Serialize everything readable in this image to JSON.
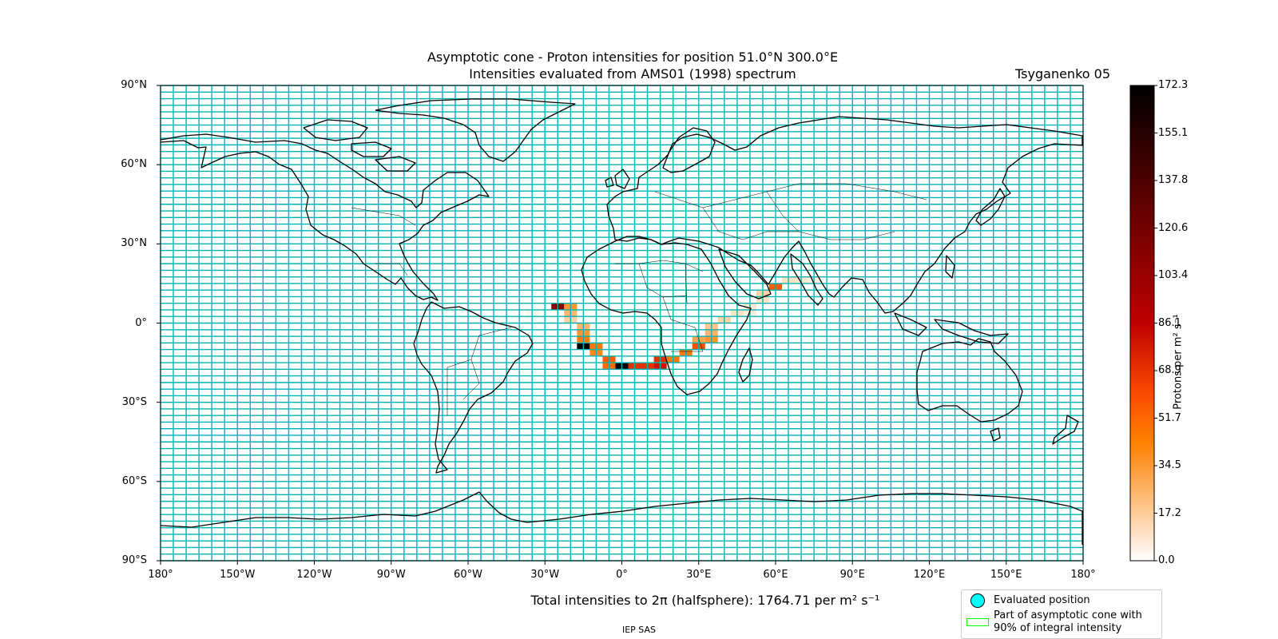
{
  "title": {
    "line1": "Asymptotic cone - Proton intensities for position 51.0°N 300.0°E",
    "line2": "Intensities evaluated from AMS01 (1998) spectrum",
    "model": "Tsyganenko 05"
  },
  "map": {
    "x_ticks": [
      {
        "lon": -180,
        "label": "180°"
      },
      {
        "lon": -150,
        "label": "150°W"
      },
      {
        "lon": -120,
        "label": "120°W"
      },
      {
        "lon": -90,
        "label": "90°W"
      },
      {
        "lon": -60,
        "label": "60°W"
      },
      {
        "lon": -30,
        "label": "30°W"
      },
      {
        "lon": 0,
        "label": "0°"
      },
      {
        "lon": 30,
        "label": "30°E"
      },
      {
        "lon": 60,
        "label": "60°E"
      },
      {
        "lon": 90,
        "label": "90°E"
      },
      {
        "lon": 120,
        "label": "120°E"
      },
      {
        "lon": 150,
        "label": "150°E"
      },
      {
        "lon": 180,
        "label": "180°"
      }
    ],
    "y_ticks": [
      {
        "lat": 90,
        "label": "90°N"
      },
      {
        "lat": 60,
        "label": "60°N"
      },
      {
        "lat": 30,
        "label": "30°N"
      },
      {
        "lat": 0,
        "label": "0°"
      },
      {
        "lat": -30,
        "label": "30°S"
      },
      {
        "lat": -60,
        "label": "60°S"
      },
      {
        "lat": -90,
        "label": "90°S"
      }
    ],
    "grid_cell_deg": {
      "lon": 5,
      "lat": 2.5
    },
    "grid_color": "#00b3b3",
    "coastline_color": "#000000"
  },
  "colorbar": {
    "label": "Protons per m² s⁻¹",
    "min": 0.0,
    "max": 172.3,
    "ticks": [
      "172.3",
      "155.1",
      "137.8",
      "120.6",
      "103.4",
      "86.1",
      "68.9",
      "51.7",
      "34.5",
      "17.2",
      "0.0"
    ],
    "colormap": "gist_heat_r"
  },
  "cells": [
    {
      "lon": -25,
      "lat": 6.25,
      "value": 110
    },
    {
      "lon": -20,
      "lat": 6.25,
      "value": 35
    },
    {
      "lon": -20,
      "lat": 3.75,
      "value": 25
    },
    {
      "lon": -20,
      "lat": 1.25,
      "value": 15
    },
    {
      "lon": -15,
      "lat": -1.25,
      "value": 25
    },
    {
      "lon": -15,
      "lat": -3.75,
      "value": 35
    },
    {
      "lon": -15,
      "lat": -6.25,
      "value": 45
    },
    {
      "lon": -15,
      "lat": -8.75,
      "value": 172.3
    },
    {
      "lon": -10,
      "lat": -8.75,
      "value": 45
    },
    {
      "lon": -10,
      "lat": -11.25,
      "value": 40
    },
    {
      "lon": -5,
      "lat": -13.75,
      "value": 55
    },
    {
      "lon": -5,
      "lat": -16.25,
      "value": 50
    },
    {
      "lon": 0,
      "lat": -16.25,
      "value": 172.3
    },
    {
      "lon": 5,
      "lat": -16.25,
      "value": 70
    },
    {
      "lon": 10,
      "lat": -16.25,
      "value": 70
    },
    {
      "lon": 15,
      "lat": -16.25,
      "value": 80
    },
    {
      "lon": 15,
      "lat": -13.75,
      "value": 70
    },
    {
      "lon": 20,
      "lat": -13.75,
      "value": 45
    },
    {
      "lon": 25,
      "lat": -11.25,
      "value": 45
    },
    {
      "lon": 30,
      "lat": -8.75,
      "value": 60
    },
    {
      "lon": 30,
      "lat": -6.25,
      "value": 30
    },
    {
      "lon": 35,
      "lat": -3.75,
      "value": 25
    },
    {
      "lon": 35,
      "lat": -6.25,
      "value": 35
    },
    {
      "lon": 35,
      "lat": -1.25,
      "value": 20
    },
    {
      "lon": 40,
      "lat": 1.25,
      "value": 15
    },
    {
      "lon": 45,
      "lat": 3.75,
      "value": 10
    },
    {
      "lon": 50,
      "lat": 6.25,
      "value": 8
    },
    {
      "lon": 55,
      "lat": 8.75,
      "value": 10
    },
    {
      "lon": 55,
      "lat": 11.25,
      "value": 15
    },
    {
      "lon": 60,
      "lat": 13.75,
      "value": 55
    },
    {
      "lon": 65,
      "lat": 16.25,
      "value": 10
    },
    {
      "lon": 70,
      "lat": 16.25,
      "value": 8
    },
    {
      "lon": 75,
      "lat": 16.25,
      "value": 5
    },
    {
      "lon": 95,
      "lat": 1.25,
      "value": 5
    },
    {
      "lon": -35,
      "lat": 3.75,
      "value": 3
    },
    {
      "lon": 50,
      "lat": 3.75,
      "value": 6
    }
  ],
  "total": {
    "prefix": "Total intensities to 2π (halfsphere): 1764.71 per m² s⁻¹"
  },
  "legend": {
    "item1": "Evaluated position",
    "item2_line1": "Part of asymptotic cone with",
    "item2_line2": "90% of integral intensity"
  },
  "credit": "IEP SAS"
}
